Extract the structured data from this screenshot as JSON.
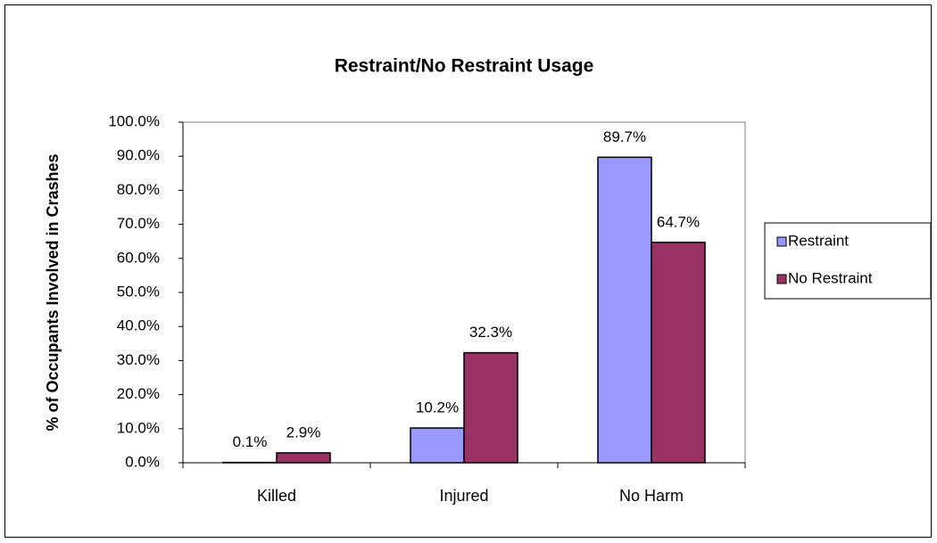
{
  "chart_data": {
    "type": "bar",
    "title": "Restraint/No Restraint Usage",
    "y_label": "% of Occupants Involved in Crashes",
    "categories": [
      "Killed",
      "Injured",
      "No Harm"
    ],
    "series": [
      {
        "name": "Restraint",
        "color": "#9999ff",
        "values": [
          0.1,
          10.2,
          89.7
        ],
        "value_labels": [
          "0.1%",
          "10.2%",
          "89.7%"
        ]
      },
      {
        "name": "No Restraint",
        "color": "#993366",
        "values": [
          2.9,
          32.3,
          64.7
        ],
        "value_labels": [
          "2.9%",
          "32.3%",
          "64.7%"
        ]
      }
    ],
    "ylim": [
      0,
      100
    ],
    "yticks": [
      {
        "value": 0,
        "label": "0.0%"
      },
      {
        "value": 10,
        "label": "10.0%"
      },
      {
        "value": 20,
        "label": "20.0%"
      },
      {
        "value": 30,
        "label": "30.0%"
      },
      {
        "value": 40,
        "label": "40.0%"
      },
      {
        "value": 50,
        "label": "50.0%"
      },
      {
        "value": 60,
        "label": "60.0%"
      },
      {
        "value": 70,
        "label": "70.0%"
      },
      {
        "value": 80,
        "label": "80.0%"
      },
      {
        "value": 90,
        "label": "90.0%"
      },
      {
        "value": 100,
        "label": "100.0%"
      }
    ],
    "grid": false,
    "legend": "right"
  }
}
